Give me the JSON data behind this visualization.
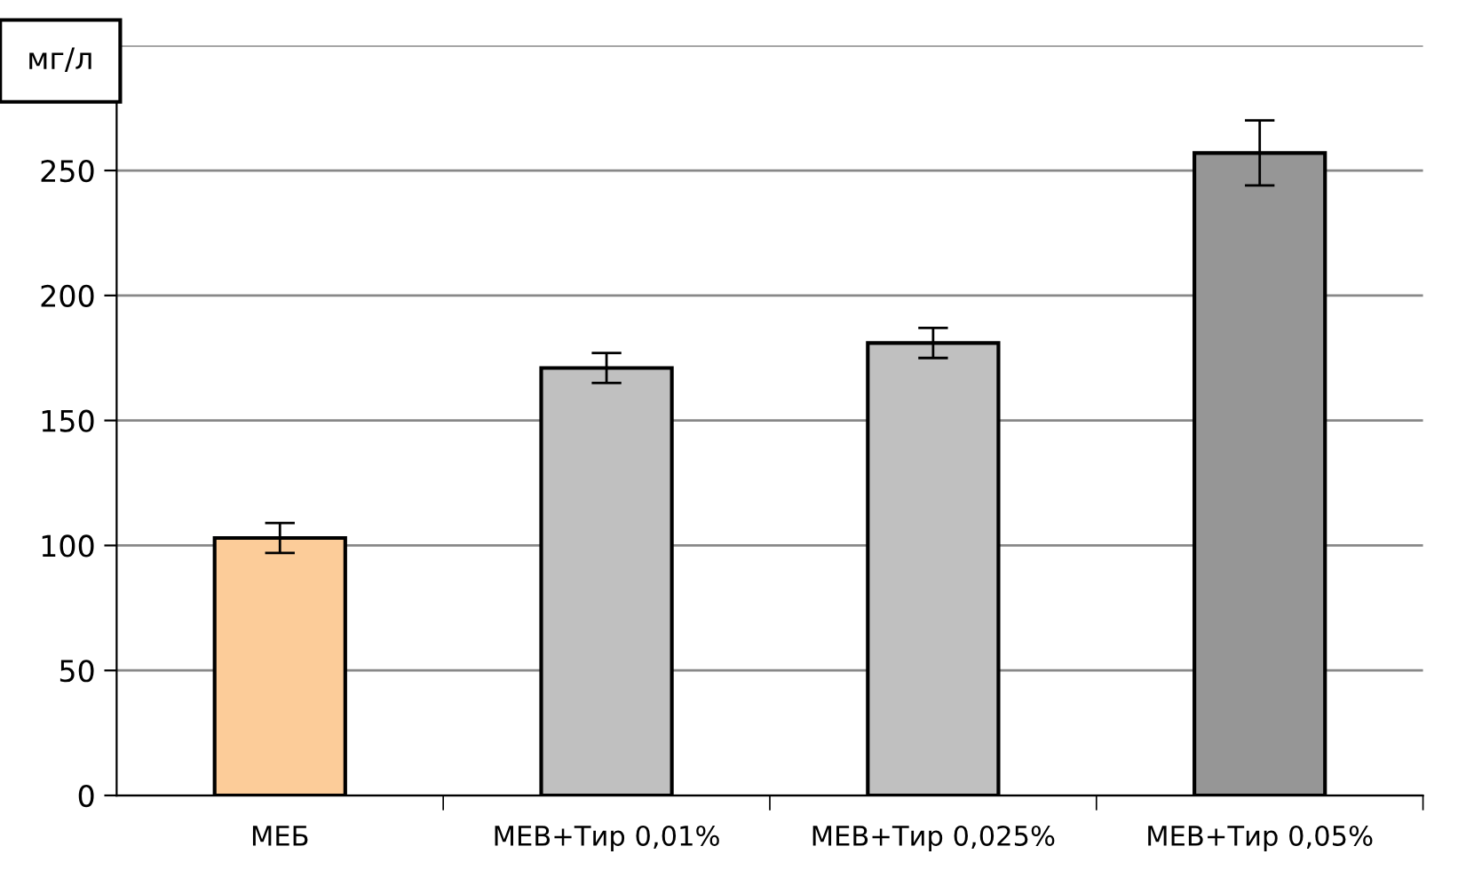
{
  "chart_data": {
    "type": "bar",
    "ylabel": "мг/л",
    "categories": [
      "МЕБ",
      "МЕВ+Тир 0,01%",
      "МЕВ+Тир 0,025%",
      "МЕВ+Тир 0,05%"
    ],
    "values": [
      103,
      171,
      181,
      257
    ],
    "errors": [
      6,
      6,
      6,
      13
    ],
    "colors": [
      "#fccc99",
      "#c0c0c0",
      "#c0c0c0",
      "#969696"
    ],
    "ylim": [
      0,
      300
    ],
    "yticks": [
      0,
      50,
      100,
      150,
      200,
      250,
      {
        "value": 300,
        "label": null
      }
    ],
    "grid": "y"
  }
}
